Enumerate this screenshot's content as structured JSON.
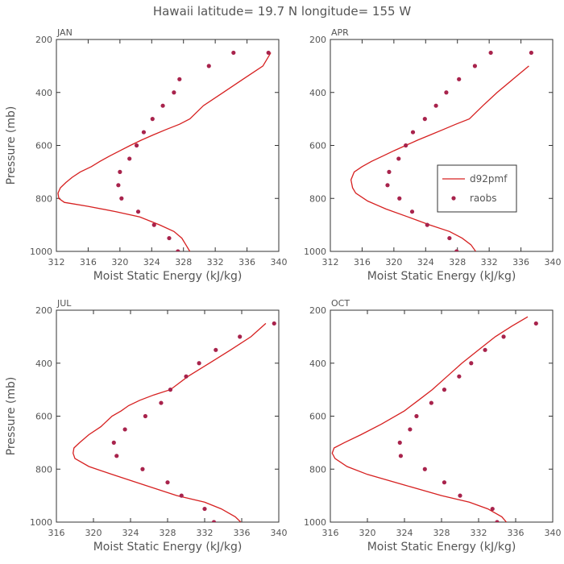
{
  "figure": {
    "title": "Hawaii  latitude= 19.7 N longitude= 155 W",
    "colors": {
      "line": "#d62020",
      "dots": "#a8234c",
      "axis": "#333333",
      "text": "#555555"
    }
  },
  "chart_data": [
    {
      "type": "line",
      "panel": "JAN",
      "xlabel": "Moist Static Energy (kJ/kg)",
      "ylabel": "Pressure (mb)",
      "xlim": [
        312,
        340
      ],
      "ylim": [
        1000,
        200
      ],
      "xticks": [
        312,
        316,
        320,
        324,
        328,
        332,
        336,
        340
      ],
      "yticks": [
        200,
        400,
        600,
        800,
        1000
      ],
      "series": [
        {
          "name": "d92pmf",
          "style": "line",
          "x": [
            328.8,
            328.3,
            327.8,
            326.8,
            325.0,
            322.5,
            319.5,
            316.0,
            313.0,
            312.3,
            312.2,
            312.5,
            313.2,
            314.0,
            315.0,
            316.4,
            317.5,
            318.7,
            320.0,
            321.3,
            322.7,
            324.2,
            325.8,
            327.5,
            328.8,
            330.5,
            333.0,
            335.5,
            338.0,
            339.0
          ],
          "y": [
            1000,
            975,
            950,
            925,
            900,
            870,
            850,
            830,
            815,
            800,
            780,
            760,
            740,
            720,
            700,
            680,
            660,
            640,
            620,
            600,
            580,
            560,
            540,
            520,
            500,
            450,
            400,
            350,
            300,
            250
          ]
        },
        {
          "name": "raobs",
          "style": "dots",
          "x": [
            327.3,
            326.2,
            324.3,
            322.3,
            320.2,
            319.8,
            320.0,
            321.2,
            322.1,
            323.0,
            324.1,
            325.4,
            326.8,
            327.5,
            331.2,
            334.3,
            338.7
          ],
          "y": [
            1000,
            950,
            900,
            850,
            800,
            750,
            700,
            650,
            600,
            550,
            500,
            450,
            400,
            350,
            300,
            250,
            250
          ]
        }
      ]
    },
    {
      "type": "line",
      "panel": "APR",
      "xlabel": "Moist Static Energy (kJ/kg)",
      "ylabel": "",
      "xlim": [
        312,
        340
      ],
      "ylim": [
        1000,
        200
      ],
      "xticks": [
        312,
        316,
        320,
        324,
        328,
        332,
        336,
        340
      ],
      "yticks": [
        200,
        400,
        600,
        800,
        1000
      ],
      "legend": {
        "position": "right-middle",
        "entries": [
          "d92pmf",
          "raobs"
        ]
      },
      "series": [
        {
          "name": "d92pmf",
          "style": "line",
          "x": [
            330.3,
            329.7,
            328.6,
            327.0,
            324.5,
            321.8,
            319.0,
            316.7,
            315.2,
            314.8,
            314.6,
            315.0,
            316.0,
            317.2,
            318.6,
            320.0,
            321.5,
            323.0,
            324.6,
            326.2,
            327.8,
            329.5,
            331.2,
            333.0,
            335.0,
            337.0
          ],
          "y": [
            1000,
            975,
            950,
            925,
            900,
            870,
            840,
            810,
            780,
            760,
            730,
            700,
            680,
            660,
            640,
            620,
            600,
            580,
            560,
            540,
            520,
            500,
            450,
            400,
            350,
            300
          ]
        },
        {
          "name": "raobs",
          "style": "dots",
          "x": [
            327.9,
            327.0,
            324.2,
            322.3,
            320.7,
            319.2,
            319.4,
            320.6,
            321.5,
            322.4,
            323.9,
            325.3,
            326.6,
            328.2,
            330.2,
            332.2,
            337.3
          ],
          "y": [
            1000,
            950,
            900,
            850,
            800,
            750,
            700,
            650,
            600,
            550,
            500,
            450,
            400,
            350,
            300,
            250,
            250
          ]
        }
      ]
    },
    {
      "type": "line",
      "panel": "JUL",
      "xlabel": "Moist Static Energy (kJ/kg)",
      "ylabel": "Pressure (mb)",
      "xlim": [
        316,
        340
      ],
      "ylim": [
        1000,
        200
      ],
      "xticks": [
        316,
        320,
        324,
        328,
        332,
        336,
        340
      ],
      "yticks": [
        200,
        400,
        600,
        800,
        1000
      ],
      "series": [
        {
          "name": "d92pmf",
          "style": "line",
          "x": [
            335.9,
            335.3,
            333.8,
            332.0,
            329.0,
            325.5,
            322.0,
            319.5,
            318.0,
            317.8,
            317.9,
            318.5,
            319.5,
            320.8,
            322.0,
            323.0,
            323.8,
            325.0,
            326.5,
            328.3,
            330.2,
            332.5,
            334.8,
            337.0,
            338.6
          ],
          "y": [
            1000,
            980,
            950,
            925,
            900,
            860,
            820,
            790,
            760,
            740,
            720,
            700,
            670,
            640,
            600,
            580,
            560,
            540,
            520,
            500,
            450,
            400,
            350,
            300,
            250
          ]
        },
        {
          "name": "raobs",
          "style": "dots",
          "x": [
            333.0,
            332.0,
            329.5,
            328.0,
            325.3,
            322.5,
            322.2,
            323.4,
            325.6,
            327.3,
            328.3,
            330.0,
            331.4,
            333.2,
            335.8,
            339.5
          ],
          "y": [
            1000,
            950,
            900,
            850,
            800,
            750,
            700,
            650,
            600,
            550,
            500,
            450,
            400,
            350,
            300,
            250
          ]
        }
      ]
    },
    {
      "type": "line",
      "panel": "OCT",
      "xlabel": "Moist Static Energy (kJ/kg)",
      "ylabel": "",
      "xlim": [
        316,
        340
      ],
      "ylim": [
        1000,
        200
      ],
      "xticks": [
        316,
        320,
        324,
        328,
        332,
        336,
        340
      ],
      "yticks": [
        200,
        400,
        600,
        800,
        1000
      ],
      "series": [
        {
          "name": "d92pmf",
          "style": "line",
          "x": [
            335.0,
            334.5,
            333.0,
            331.0,
            328.0,
            324.0,
            320.0,
            317.8,
            316.5,
            316.2,
            316.4,
            317.5,
            319.3,
            321.5,
            324.0,
            325.5,
            327.0,
            328.6,
            330.2,
            332.0,
            333.8,
            335.6,
            337.3
          ],
          "y": [
            1000,
            980,
            950,
            925,
            900,
            860,
            820,
            790,
            760,
            740,
            720,
            700,
            670,
            630,
            580,
            540,
            500,
            450,
            400,
            350,
            300,
            260,
            225
          ]
        },
        {
          "name": "raobs",
          "style": "dots",
          "x": [
            334.0,
            333.5,
            330.0,
            328.3,
            326.2,
            323.6,
            323.5,
            324.6,
            325.3,
            326.9,
            328.3,
            329.9,
            331.2,
            332.7,
            334.7,
            338.2
          ],
          "y": [
            1000,
            950,
            900,
            850,
            800,
            750,
            700,
            650,
            600,
            550,
            500,
            450,
            400,
            350,
            300,
            250
          ]
        }
      ]
    }
  ]
}
